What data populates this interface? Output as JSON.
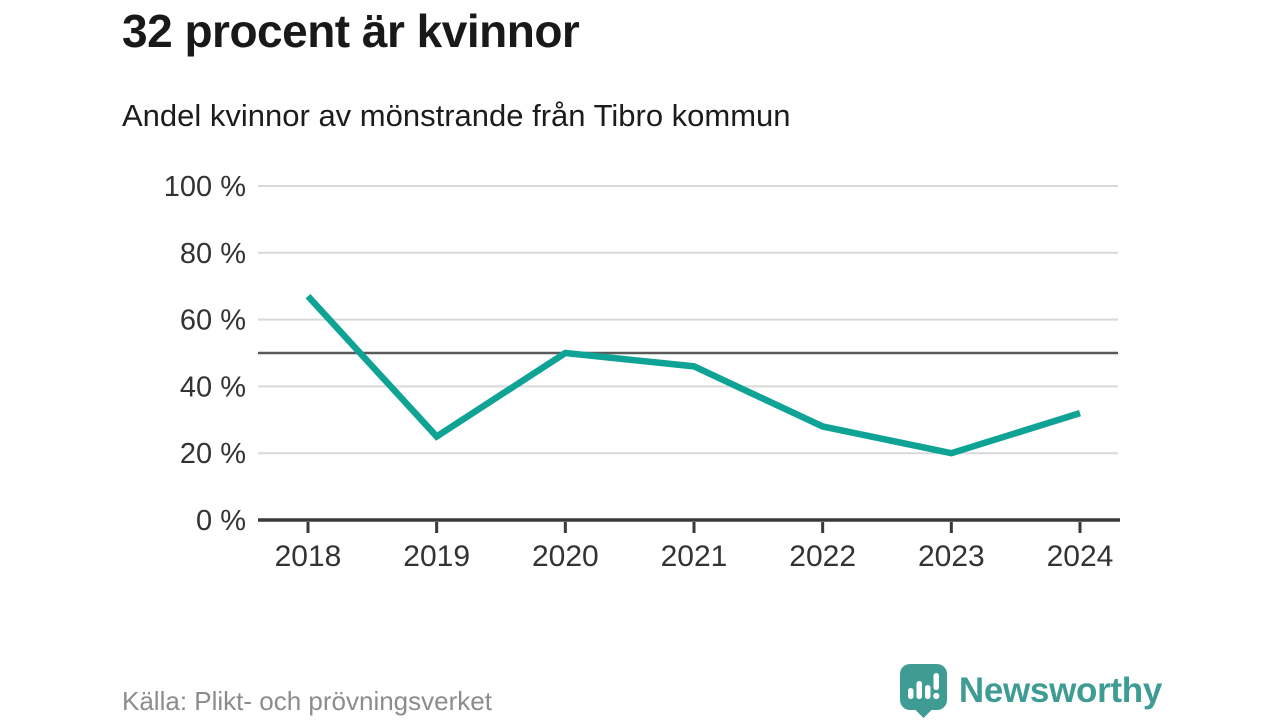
{
  "header": {
    "title": "32 procent är kvinnor",
    "subtitle": "Andel kvinnor av mönstrande från Tibro kommun"
  },
  "chart_data": {
    "type": "line",
    "title": "32 procent är kvinnor",
    "subtitle": "Andel kvinnor av mönstrande från Tibro kommun",
    "x": [
      "2018",
      "2019",
      "2020",
      "2021",
      "2022",
      "2023",
      "2024"
    ],
    "series": [
      {
        "name": "Andel kvinnor av mönstrande",
        "values": [
          67,
          25,
          50,
          46,
          28,
          20,
          32
        ]
      }
    ],
    "ylim": [
      0,
      100
    ],
    "yticks": [
      0,
      20,
      40,
      60,
      80,
      100
    ],
    "ytick_labels": [
      "0 %",
      "20 %",
      "40 %",
      "60 %",
      "80 %",
      "100 %"
    ],
    "reference_line": 50,
    "grid": true,
    "legend_position": "none",
    "xlabel": "",
    "ylabel": "",
    "colors": {
      "line": "#0fa396",
      "grid": "#d9d9d9",
      "reference": "#5a5a5a",
      "axis": "#3a3a3a",
      "tick_label": "#333333"
    }
  },
  "footer": {
    "source": "Källa: Plikt- och prövningsverket",
    "brand": "Newsworthy"
  },
  "icons": {
    "logo": "newsworthy-bar-chart-bubble"
  },
  "brand_color": "#3f9c94"
}
